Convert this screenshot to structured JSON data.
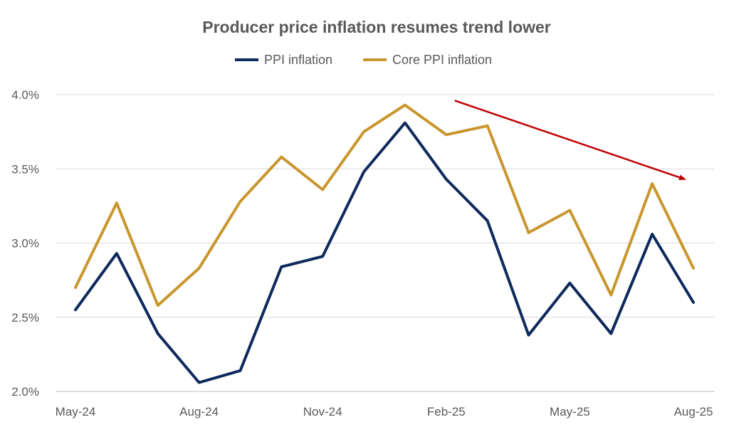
{
  "chart_data": {
    "type": "line",
    "title": "Producer price inflation resumes trend lower",
    "xlabel": "",
    "ylabel": "",
    "x": [
      "May-24",
      "Jun-24",
      "Jul-24",
      "Aug-24",
      "Sep-24",
      "Oct-24",
      "Nov-24",
      "Dec-24",
      "Jan-25",
      "Feb-25",
      "Mar-25",
      "Apr-25",
      "May-25",
      "Jun-25",
      "Jul-25",
      "Aug-25"
    ],
    "x_tick_labels": [
      "May-24",
      "Aug-24",
      "Nov-24",
      "Feb-25",
      "May-25",
      "Aug-25"
    ],
    "x_tick_indices": [
      0,
      3,
      6,
      9,
      12,
      15
    ],
    "ylim": [
      2.0,
      4.0
    ],
    "y_ticks": [
      2.0,
      2.5,
      3.0,
      3.5,
      4.0
    ],
    "y_tick_labels": [
      "2.0%",
      "2.5%",
      "3.0%",
      "3.5%",
      "4.0%"
    ],
    "grid": true,
    "legend_position": "top-center",
    "series": [
      {
        "name": "PPI inflation",
        "color": "#0e2a5c",
        "values": [
          2.55,
          2.93,
          2.39,
          2.06,
          2.14,
          2.84,
          2.91,
          3.48,
          3.81,
          3.43,
          3.15,
          2.38,
          2.73,
          2.39,
          3.06,
          2.6
        ]
      },
      {
        "name": "Core PPI inflation",
        "color": "#c9962e",
        "values": [
          2.7,
          3.27,
          2.58,
          2.83,
          3.28,
          3.58,
          3.36,
          3.75,
          3.93,
          3.73,
          3.79,
          3.07,
          3.22,
          2.65,
          3.4,
          2.83
        ]
      }
    ],
    "annotation": {
      "type": "arrow",
      "color": "#c00000",
      "from": {
        "x": "Feb-25",
        "y": 3.96
      },
      "to": {
        "x": "Aug-25",
        "y": 3.43
      }
    }
  }
}
